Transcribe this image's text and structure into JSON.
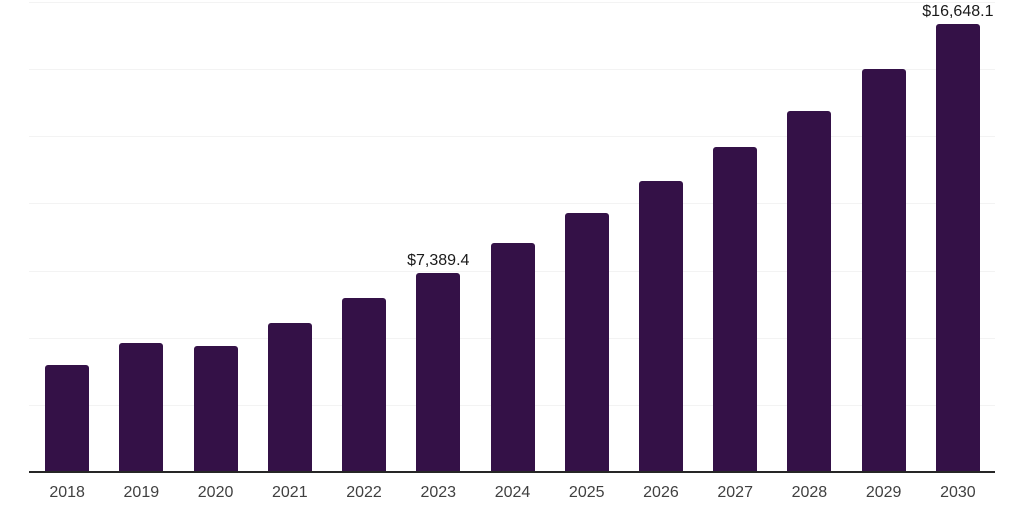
{
  "theme": {
    "background": "#ffffff",
    "bar_color": "#341147",
    "gridline_color": "#f3f3f3",
    "axis_line_color": "#262626",
    "tick_label_color": "#404040",
    "data_label_color": "#1a1a1a"
  },
  "chart_data": {
    "type": "bar",
    "title": "",
    "xlabel": "",
    "ylabel": "",
    "categories": [
      "2018",
      "2019",
      "2020",
      "2021",
      "2022",
      "2023",
      "2024",
      "2025",
      "2026",
      "2027",
      "2028",
      "2029",
      "2030"
    ],
    "values": [
      3930,
      4780,
      4670,
      5510,
      6430,
      7389.4,
      8490,
      9620,
      10800,
      12070,
      13410,
      14950,
      16648.1
    ],
    "data_labels": [
      {
        "category": "2023",
        "text": "$7,389.4"
      },
      {
        "category": "2030",
        "text": "$16,648.1"
      }
    ],
    "ylim": [
      0,
      17500
    ],
    "gridline_step": 2500,
    "grid": true,
    "y_axis_tick_labels_visible": false,
    "legend": false
  }
}
